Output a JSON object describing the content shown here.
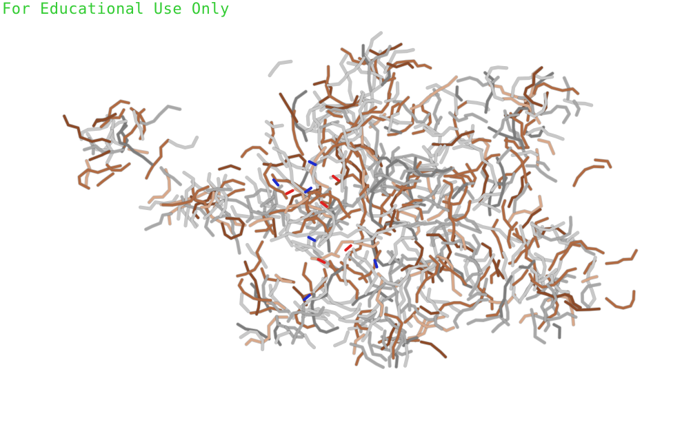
{
  "watermark": {
    "text": "For Educational Use Only",
    "color": "#33cc33"
  },
  "render": {
    "style": "sticks",
    "background": "#ffffff",
    "colors": {
      "carbon_light": "#c8c8c8",
      "carbon_mid": "#a8a8a8",
      "carbon_dark": "#7d7d7d",
      "tint": "#b06a42",
      "tint_dark": "#8c4a28",
      "tint_light": "#d8a88a",
      "nitrogen": "#1e2ccf",
      "oxygen": "#e02020"
    }
  }
}
